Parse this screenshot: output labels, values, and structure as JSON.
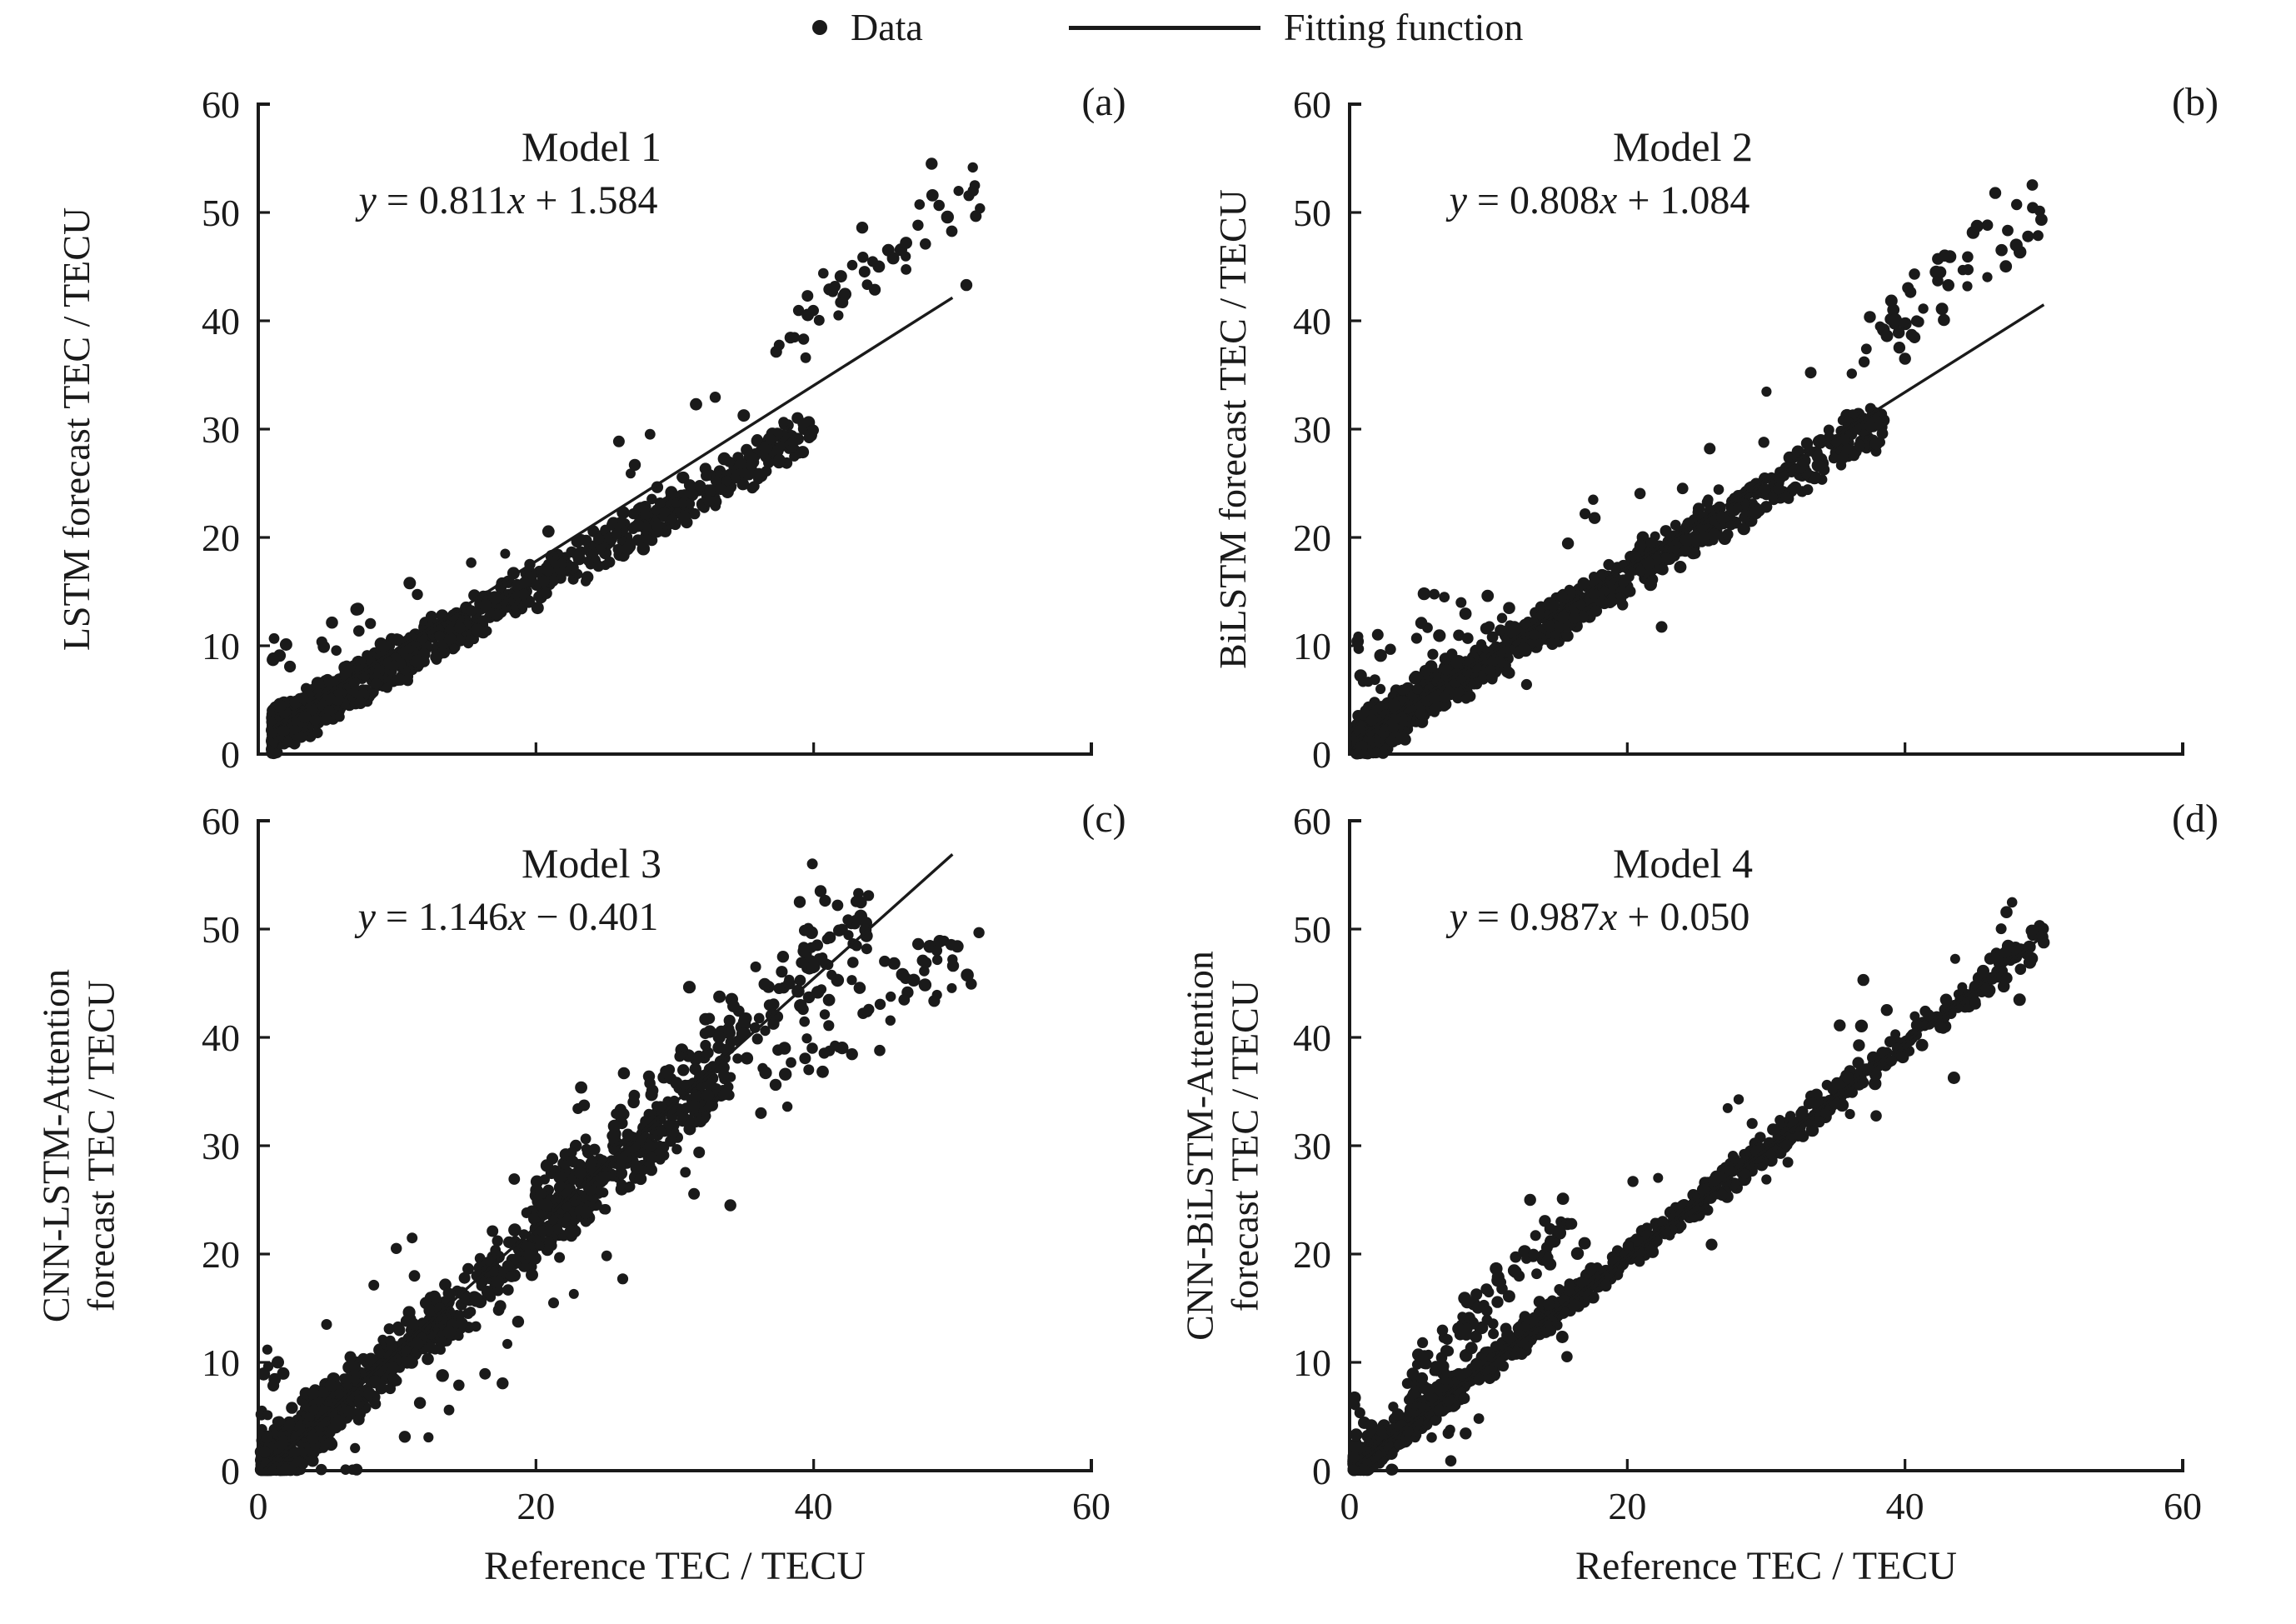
{
  "colors": {
    "ink": "#1a1a1a",
    "background": "#ffffff"
  },
  "legend": {
    "data_label": "Data",
    "fitting_label": "Fitting function"
  },
  "axes": {
    "xlabel": "Reference TEC / TECU",
    "xlim": [
      0,
      60
    ],
    "ylim": [
      0,
      60
    ],
    "xticks": [
      0,
      20,
      40,
      60
    ],
    "yticks": [
      0,
      10,
      20,
      30,
      40,
      50,
      60
    ]
  },
  "chart_data": [
    {
      "type": "scatter",
      "panel": "a",
      "corner_label": "(a)",
      "title": "Model 1",
      "equation": "y = 0.811x + 1.584",
      "eq": {
        "y": "y",
        "mid": " = 0.811",
        "x": "x",
        "tail": " + 1.584"
      },
      "ylabel_lines": [
        "LSTM  forecast TEC / TECU"
      ],
      "fit": {
        "slope": 0.811,
        "intercept": 1.584,
        "x_range": [
          1,
          50
        ]
      },
      "scatter": {
        "seed": 11,
        "clusters": [
          {
            "count": 1100,
            "x_min": 1,
            "x_max": 40,
            "x_power": 2.2,
            "slope": 0.72,
            "intercept": 1.3,
            "noise": 1.6,
            "stray_frac": 0.04,
            "stray_mag": 6,
            "stray_bias": 0.9
          },
          {
            "count": 48,
            "x_min": 37,
            "x_max": 52,
            "x_power": 1.0,
            "slope": 0.95,
            "intercept": 3.0,
            "noise": 2.2,
            "stray_frac": 0,
            "stray_mag": 0,
            "stray_bias": 0.5
          }
        ],
        "extra_points": [
          [
            48.5,
            54.5
          ],
          [
            43.5,
            48.6
          ],
          [
            51,
            43.3
          ]
        ]
      }
    },
    {
      "type": "scatter",
      "panel": "b",
      "corner_label": "(b)",
      "title": "Model 2",
      "equation": "y = 0.808x + 1.084",
      "eq": {
        "y": "y",
        "mid": " = 0.808",
        "x": "x",
        "tail": " + 1.084"
      },
      "ylabel_lines": [
        "BiLSTM forecast TEC / TECU"
      ],
      "fit": {
        "slope": 0.808,
        "intercept": 1.084,
        "x_range": [
          0.5,
          50
        ]
      },
      "scatter": {
        "seed": 22,
        "clusters": [
          {
            "count": 1100,
            "x_min": 0.5,
            "x_max": 38.5,
            "x_power": 2.0,
            "slope": 0.78,
            "intercept": 0.9,
            "noise": 1.7,
            "stray_frac": 0.05,
            "stray_mag": 7,
            "stray_bias": 0.85
          },
          {
            "count": 52,
            "x_min": 37,
            "x_max": 50,
            "x_power": 1.0,
            "slope": 1.05,
            "intercept": -1.5,
            "noise": 2.4,
            "stray_frac": 0,
            "stray_mag": 0,
            "stray_bias": 0.5
          }
        ],
        "extra_points": [
          [
            46.5,
            51.8
          ],
          [
            40,
            36.5
          ]
        ]
      }
    },
    {
      "type": "scatter",
      "panel": "c",
      "corner_label": "(c)",
      "title": "Model 3",
      "equation": "y = 1.146x − 0.401",
      "eq": {
        "y": "y",
        "mid": " = 1.146",
        "x": "x",
        "tail": " − 0.401"
      },
      "ylabel_lines": [
        "CNN-LSTM-Attention",
        "forecast TEC / TECU"
      ],
      "fit": {
        "slope": 1.146,
        "intercept": -0.401,
        "x_range": [
          0.4,
          50
        ]
      },
      "scatter": {
        "seed": 33,
        "clusters": [
          {
            "count": 1000,
            "x_min": 0.2,
            "x_max": 34,
            "x_power": 1.9,
            "slope": 1.08,
            "intercept": -0.3,
            "noise": 2.2,
            "stray_frac": 0.05,
            "stray_mag": 8,
            "stray_bias": 0.55
          },
          {
            "count": 270,
            "x_min": 20,
            "x_max": 44,
            "x_power": 1.25,
            "slope": 1.18,
            "intercept": -0.5,
            "noise": 3.0,
            "stray_frac": 0.03,
            "stray_mag": 6,
            "stray_bias": 0.5
          },
          {
            "count": 60,
            "x_min": 36,
            "x_max": 52,
            "x_power": 1.0,
            "slope": 0.85,
            "intercept": 5.0,
            "noise": 3.0,
            "stray_frac": 0,
            "stray_mag": 0,
            "stray_bias": 0.5
          }
        ],
        "extra_points": [
          [
            40.5,
            53.5
          ],
          [
            39,
            52.5
          ],
          [
            34,
            24.5
          ]
        ]
      }
    },
    {
      "type": "scatter",
      "panel": "d",
      "corner_label": "(d)",
      "title": "Model 4",
      "equation": "y = 0.987x + 0.050",
      "eq": {
        "y": "y",
        "mid": " = 0.987",
        "x": "x",
        "tail": " + 0.050"
      },
      "ylabel_lines": [
        "CNN-BiLSTM-Attention",
        "forecast TEC / TECU"
      ],
      "fit": {
        "slope": 0.987,
        "intercept": 0.05,
        "x_range": [
          0.5,
          50
        ]
      },
      "scatter": {
        "seed": 44,
        "clusters": [
          {
            "count": 1250,
            "x_min": 0.3,
            "x_max": 50,
            "x_power": 2.4,
            "slope": 0.985,
            "intercept": 0.1,
            "noise": 1.15,
            "stray_frac": 0.06,
            "stray_mag": 5,
            "stray_bias": 0.65
          },
          {
            "count": 90,
            "x_min": 4,
            "x_max": 16,
            "x_power": 1.1,
            "slope": 1.35,
            "intercept": 2.0,
            "noise": 1.8,
            "stray_frac": 0,
            "stray_mag": 0,
            "stray_bias": 0.5
          }
        ],
        "extra_points": [
          [
            37,
            45.3
          ],
          [
            30.5,
            31.5
          ],
          [
            13,
            25
          ]
        ]
      }
    }
  ]
}
